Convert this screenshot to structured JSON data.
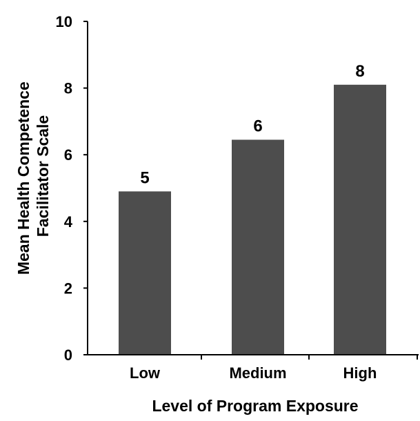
{
  "chart_data": {
    "type": "bar",
    "title": "",
    "xlabel": "Level of Program Exposure",
    "ylabel_lines": [
      "Mean Health Competence",
      "Facilitator Scale"
    ],
    "categories": [
      "Low",
      "Medium",
      "High"
    ],
    "values": [
      4.9,
      6.45,
      8.1
    ],
    "data_labels": [
      "5",
      "6",
      "8"
    ],
    "ylim": [
      0,
      10
    ],
    "yticks": [
      0,
      2,
      4,
      6,
      8,
      10
    ],
    "ytick_labels": [
      "0",
      "2",
      "4",
      "6",
      "8",
      "10"
    ],
    "grid": false,
    "bar_color": "#4d4d4d",
    "axis_color": "#000000"
  }
}
